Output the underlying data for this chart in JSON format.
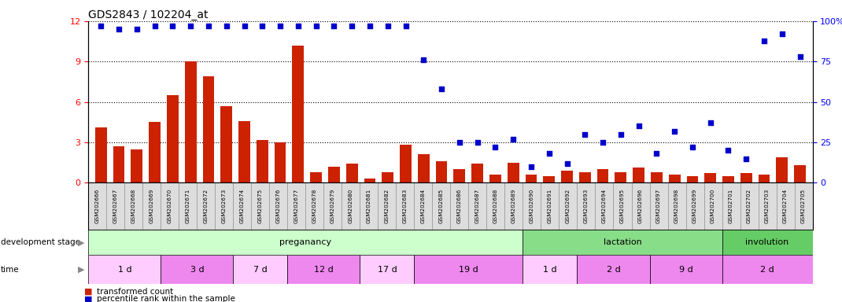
{
  "title": "GDS2843 / 102204_at",
  "samples": [
    "GSM202666",
    "GSM202667",
    "GSM202668",
    "GSM202669",
    "GSM202670",
    "GSM202671",
    "GSM202672",
    "GSM202673",
    "GSM202674",
    "GSM202675",
    "GSM202676",
    "GSM202677",
    "GSM202678",
    "GSM202679",
    "GSM202680",
    "GSM202681",
    "GSM202682",
    "GSM202683",
    "GSM202684",
    "GSM202685",
    "GSM202686",
    "GSM202687",
    "GSM202688",
    "GSM202689",
    "GSM202690",
    "GSM202691",
    "GSM202692",
    "GSM202693",
    "GSM202694",
    "GSM202695",
    "GSM202696",
    "GSM202697",
    "GSM202698",
    "GSM202699",
    "GSM202700",
    "GSM202701",
    "GSM202702",
    "GSM202703",
    "GSM202704",
    "GSM202705"
  ],
  "bar_values": [
    4.1,
    2.7,
    2.5,
    4.5,
    6.5,
    9.0,
    7.9,
    5.7,
    4.6,
    3.2,
    3.0,
    10.2,
    0.8,
    1.2,
    1.4,
    0.3,
    0.8,
    2.8,
    2.1,
    1.6,
    1.0,
    1.4,
    0.6,
    1.5,
    0.6,
    0.5,
    0.9,
    0.8,
    1.0,
    0.8,
    1.1,
    0.8,
    0.6,
    0.5,
    0.7,
    0.5,
    0.7,
    0.6,
    1.9,
    1.3
  ],
  "percentile_values": [
    97,
    95,
    95,
    97,
    97,
    97,
    97,
    97,
    97,
    97,
    97,
    97,
    97,
    97,
    97,
    97,
    97,
    97,
    76,
    58,
    25,
    25,
    22,
    27,
    10,
    18,
    12,
    30,
    25,
    30,
    35,
    18,
    32,
    22,
    37,
    20,
    15,
    88,
    92,
    78
  ],
  "bar_color": "#cc2200",
  "dot_color": "#0000cc",
  "ylim_left": [
    0,
    12
  ],
  "ylim_right": [
    0,
    100
  ],
  "yticks_left": [
    0,
    3,
    6,
    9,
    12
  ],
  "yticks_right": [
    0,
    25,
    50,
    75,
    100
  ],
  "ytick_right_labels": [
    "0",
    "25",
    "50",
    "75",
    "100%"
  ],
  "development_stages": [
    {
      "label": "preganancy",
      "start": 0,
      "end": 24,
      "color": "#ccffcc"
    },
    {
      "label": "lactation",
      "start": 24,
      "end": 35,
      "color": "#88dd88"
    },
    {
      "label": "involution",
      "start": 35,
      "end": 40,
      "color": "#66cc66"
    }
  ],
  "time_periods": [
    {
      "label": "1 d",
      "start": 0,
      "end": 4,
      "color": "#ffccff"
    },
    {
      "label": "3 d",
      "start": 4,
      "end": 8,
      "color": "#ee88ee"
    },
    {
      "label": "7 d",
      "start": 8,
      "end": 11,
      "color": "#ffccff"
    },
    {
      "label": "12 d",
      "start": 11,
      "end": 15,
      "color": "#ee88ee"
    },
    {
      "label": "17 d",
      "start": 15,
      "end": 18,
      "color": "#ffccff"
    },
    {
      "label": "19 d",
      "start": 18,
      "end": 24,
      "color": "#ee88ee"
    },
    {
      "label": "1 d",
      "start": 24,
      "end": 27,
      "color": "#ffccff"
    },
    {
      "label": "2 d",
      "start": 27,
      "end": 31,
      "color": "#ee88ee"
    },
    {
      "label": "9 d",
      "start": 31,
      "end": 35,
      "color": "#ee88ee"
    },
    {
      "label": "2 d",
      "start": 35,
      "end": 40,
      "color": "#ee88ee"
    }
  ],
  "legend_bar_label": "transformed count",
  "legend_dot_label": "percentile rank within the sample",
  "background_color": "#ffffff",
  "stage_label": "development stage",
  "time_label": "time"
}
